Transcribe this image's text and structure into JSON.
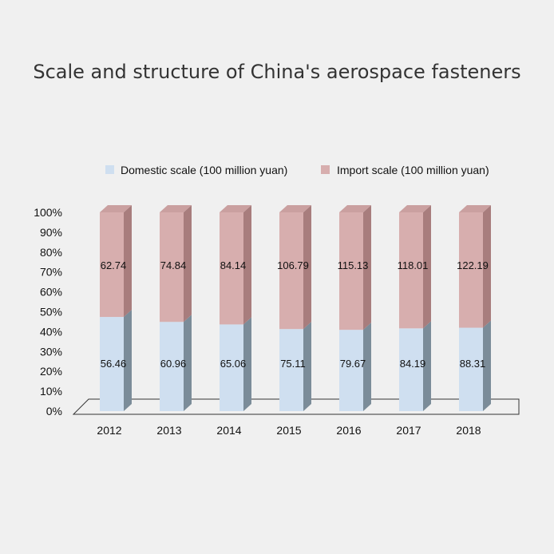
{
  "chart_data": {
    "type": "bar",
    "stacked": true,
    "normalized": true,
    "three_d": true,
    "title": "Scale and structure of China's aerospace fasteners",
    "categories": [
      "2012",
      "2013",
      "2014",
      "2015",
      "2016",
      "2017",
      "2018"
    ],
    "series": [
      {
        "name": "Domestic scale (100 million yuan)",
        "color": "#cfdff0",
        "side_color": "#7b8c99",
        "values": [
          56.46,
          60.96,
          65.06,
          75.11,
          79.67,
          84.19,
          88.31
        ]
      },
      {
        "name": "Import scale (100 million yuan)",
        "color": "#d7aeae",
        "side_color": "#a87d7d",
        "values": [
          62.74,
          74.84,
          84.14,
          106.79,
          115.13,
          118.01,
          122.19
        ]
      }
    ],
    "y_ticks": [
      "0%",
      "10%",
      "20%",
      "30%",
      "40%",
      "50%",
      "60%",
      "70%",
      "80%",
      "90%",
      "100%"
    ],
    "ylim": [
      0,
      100
    ],
    "grid": false,
    "legend": "top-center"
  }
}
